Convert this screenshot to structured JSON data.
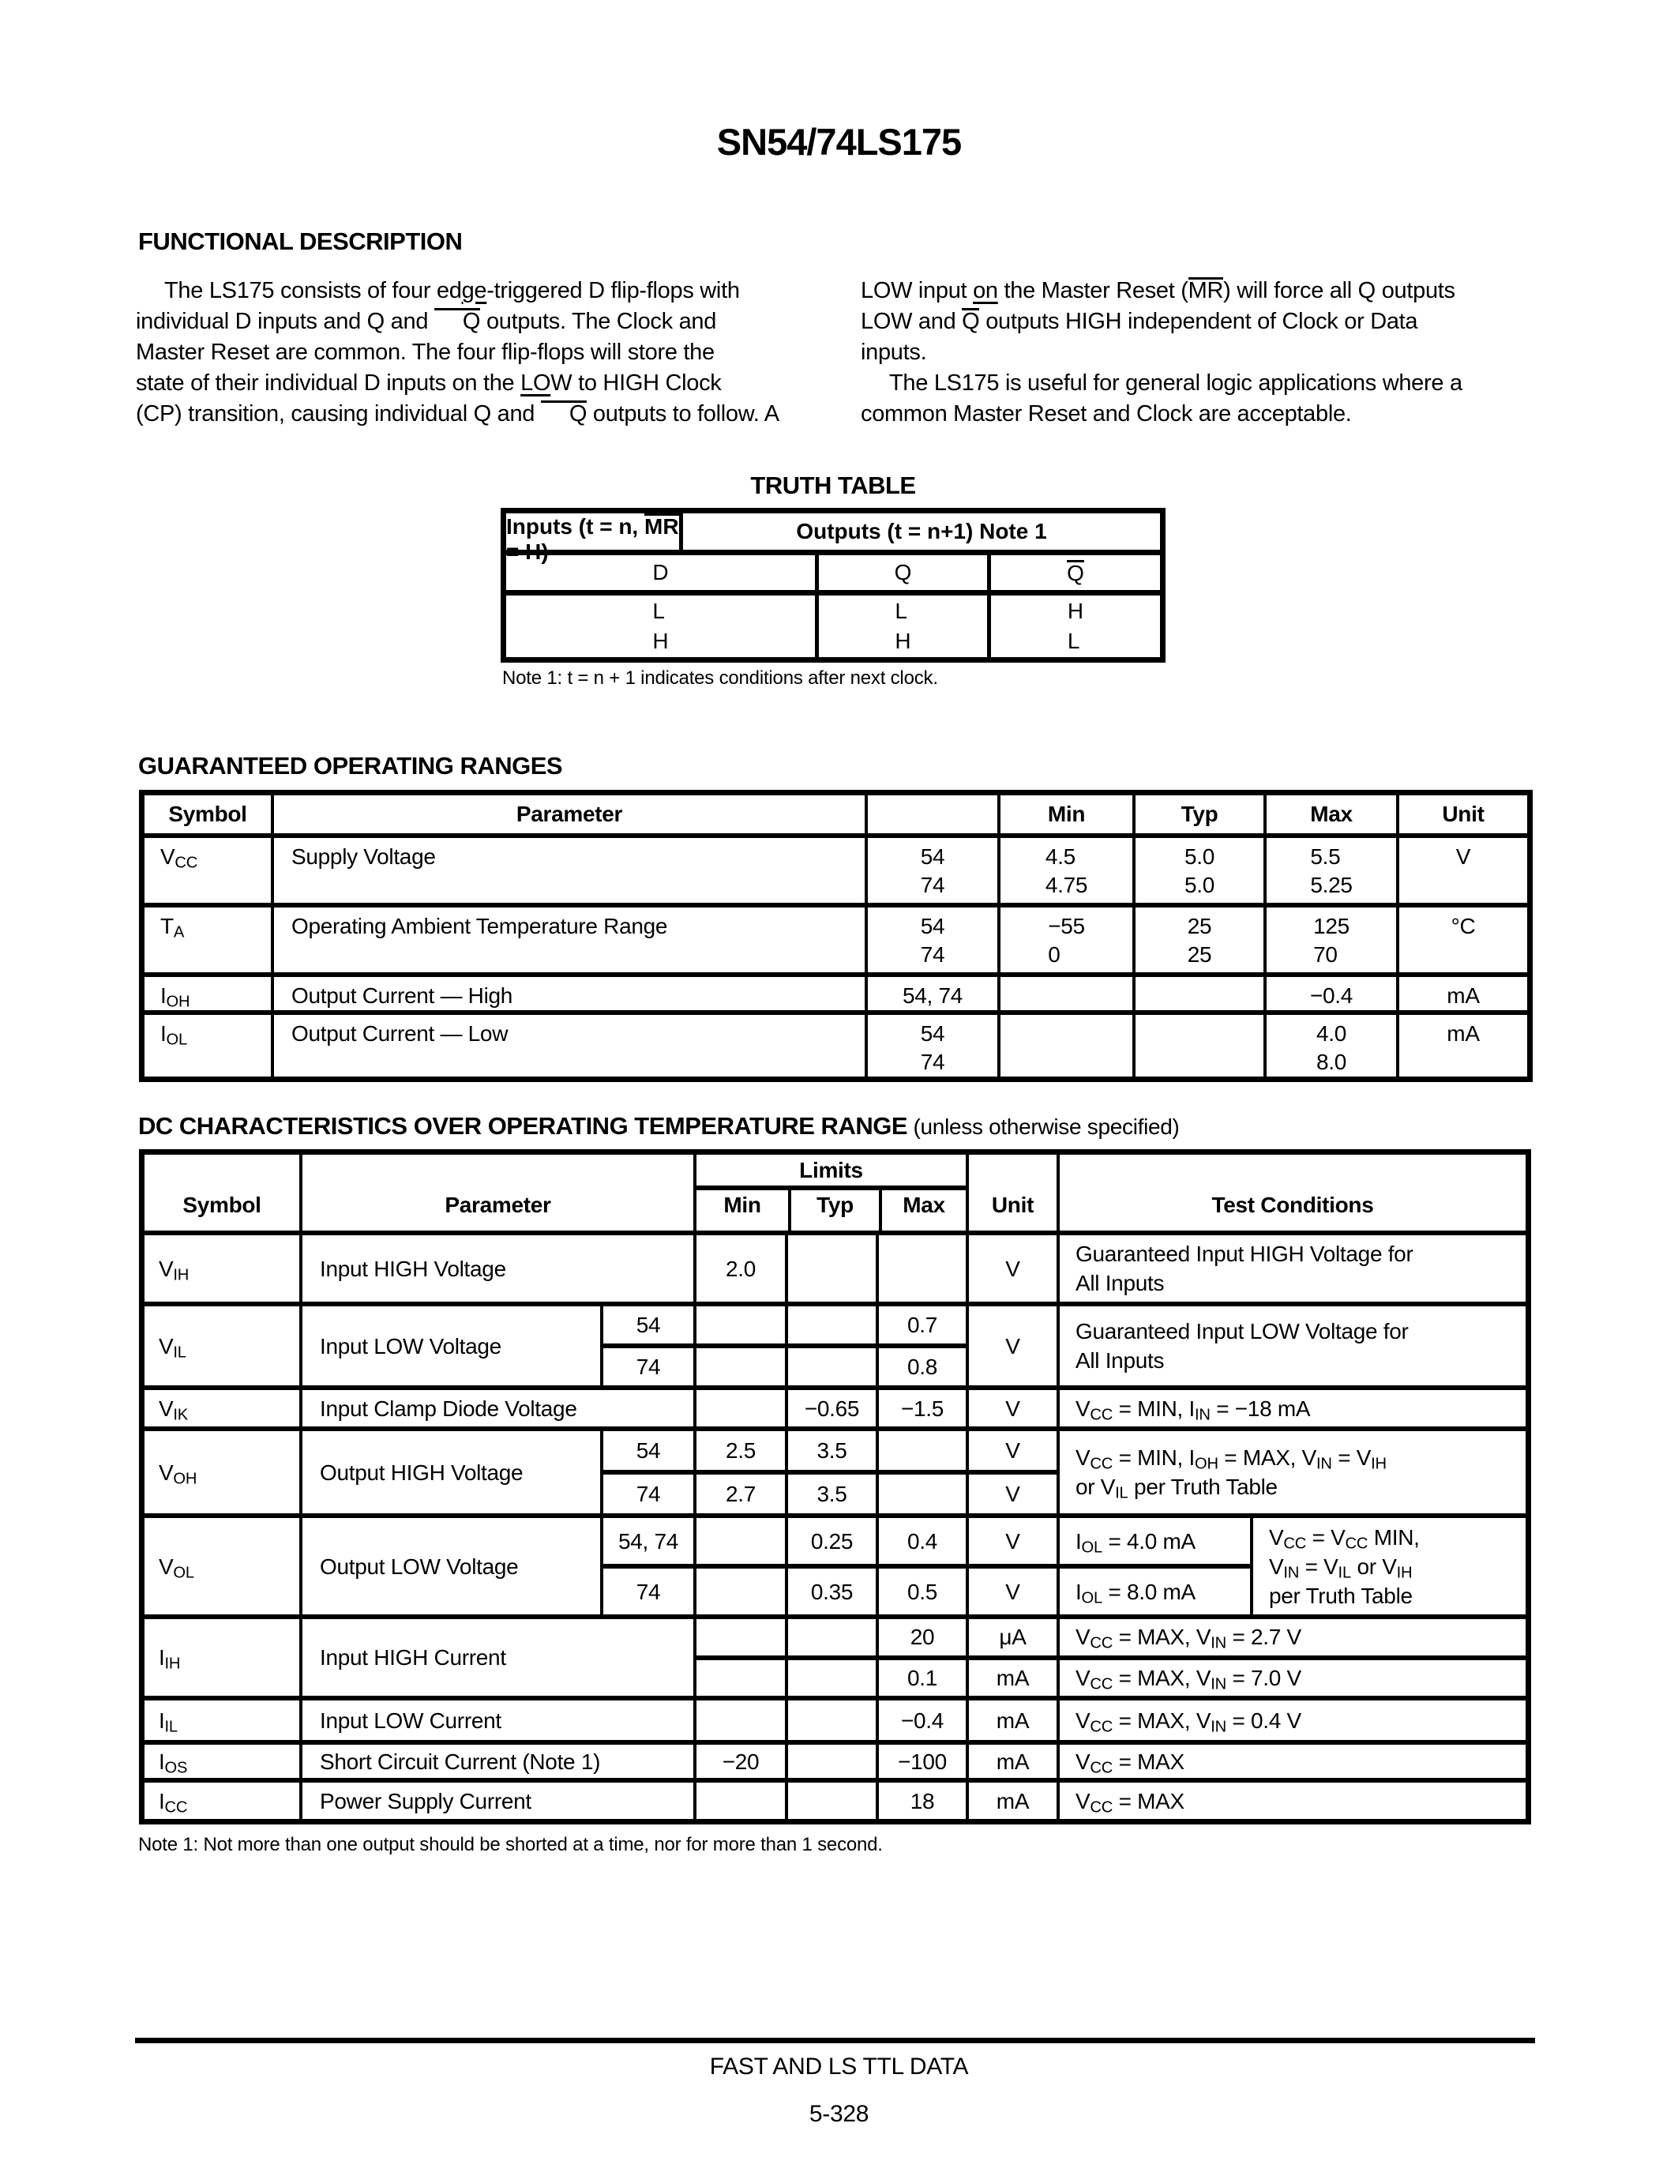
{
  "title": "SN54/74LS175",
  "functional": {
    "heading": "FUNCTIONAL DESCRIPTION",
    "left_p1": "The LS175 consists of four ed+ge+-triggered D flip-flops with\nindividual D inputs and Q and ~Q~ outputs. The Clock and\nMaster Reset are common. The four flip-flops will store the\nstate of their individual D inputs on the +LO+W to HIGH Clock\n(CP) transition, causing individual Q and ~Q~ outputs to follow. A",
    "right_p1": "LOW input +on+ the Master Reset (~MR~) will force all Q outputs\nLOW and ~Q~ outputs HIGH independent of Clock or Data\ninputs.",
    "right_p2": "The LS175 is useful for general logic applications where a\ncommon Master Reset and Clock are acceptable."
  },
  "truth_table": {
    "title": "TRUTH TABLE",
    "inputs_header": "Inputs (t = n, ~MR~ = H)",
    "outputs_header": "Outputs (t = n+1) Note 1",
    "col_d": "D",
    "col_q": "Q",
    "col_qbar": "~Q~",
    "d_values": "L\nH",
    "q_values": "L\nH",
    "qbar_values": "H\nL",
    "note": "Note 1: t = n + 1 indicates conditions after next clock."
  },
  "gor": {
    "heading": "GUARANTEED OPERATING RANGES",
    "header": {
      "symbol": "Symbol",
      "parameter": "Parameter",
      "device": "",
      "min": "Min",
      "typ": "Typ",
      "max": "Max",
      "unit": "Unit"
    },
    "rows": {
      "vcc": {
        "sym": "V_CC_",
        "param": "Supply Voltage",
        "dev": "54\n74",
        "min": "4.5\n4.75",
        "typ": "5.0\n5.0",
        "max": "5.5\n5.25",
        "unit": "V"
      },
      "ta": {
        "sym": "T_A_",
        "param": "Operating Ambient Temperature Range",
        "dev": "54\n74",
        "min": "−55\n0",
        "typ": "25\n25",
        "max": "125\n70",
        "unit": "°C"
      },
      "ioh": {
        "sym": "I_OH_",
        "param": "Output Current — High",
        "dev": "54, 74",
        "min": "",
        "typ": "",
        "max": "−0.4",
        "unit": "mA"
      },
      "iol": {
        "sym": "I_OL_",
        "param": "Output Current — Low",
        "dev": "54\n74",
        "min": "",
        "typ": "",
        "max": "4.0\n8.0",
        "unit": "mA"
      }
    }
  },
  "dc": {
    "heading": "DC CHARACTERISTICS OVER OPERATING TEMPERATURE RANGE",
    "heading_note": " (unless otherwise specified)",
    "header": {
      "symbol": "Symbol",
      "parameter": "Parameter",
      "limits": "Limits",
      "min": "Min",
      "typ": "Typ",
      "max": "Max",
      "unit": "Unit",
      "test_conditions": "Test Conditions"
    },
    "rows": {
      "vih": {
        "sym": "V_IH_",
        "param": "Input HIGH Voltage",
        "min": "2.0",
        "unit": "V",
        "tc": "Guaranteed Input HIGH Voltage for\nAll Inputs"
      },
      "vil": {
        "sym": "V_IL_",
        "param": "Input LOW Voltage",
        "dev1": "54",
        "max1": "0.7",
        "dev2": "74",
        "max2": "0.8",
        "unit": "V",
        "tc": "Guaranteed Input LOW Voltage for\nAll Inputs"
      },
      "vik": {
        "sym": "V_IK_",
        "param": "Input Clamp Diode Voltage",
        "typ": "−0.65",
        "max": "−1.5",
        "unit": "V",
        "tc": "V_CC_ = MIN, I_IN_ = −18 mA"
      },
      "voh": {
        "sym": "V_OH_",
        "param": "Output HIGH Voltage",
        "dev1": "54",
        "min1": "2.5",
        "typ1": "3.5",
        "unit1": "V",
        "dev2": "74",
        "min2": "2.7",
        "typ2": "3.5",
        "unit2": "V",
        "tc": "V_CC_ = MIN, I_OH_ = MAX, V_IN_ = V_IH_\nor V_IL_ per Truth Table"
      },
      "vol": {
        "sym": "V_OL_",
        "param": "Output LOW Voltage",
        "dev1": "54, 74",
        "typ1": "0.25",
        "max1": "0.4",
        "unit1": "V",
        "tc1": "I_OL_ = 4.0 mA",
        "dev2": "74",
        "typ2": "0.35",
        "max2": "0.5",
        "unit2": "V",
        "tc2": "I_OL_ = 8.0 mA",
        "tc_shared": "V_CC_ = V_CC_ MIN,\nV_IN_ = V_IL_ or V_IH_\nper Truth Table"
      },
      "iih": {
        "sym": "I_IH_",
        "param": "Input HIGH Current",
        "max1": "20",
        "unit1": "μA",
        "tc1": "V_CC_ = MAX, V_IN_ = 2.7 V",
        "max2": "0.1",
        "unit2": "mA",
        "tc2": "V_CC_ = MAX, V_IN_ = 7.0 V"
      },
      "iil": {
        "sym": "I_IL_",
        "param": "Input LOW Current",
        "max": "−0.4",
        "unit": "mA",
        "tc": "V_CC_ = MAX, V_IN_ = 0.4 V"
      },
      "ios": {
        "sym": "I_OS_",
        "param": "Short Circuit Current (Note 1)",
        "min": "−20",
        "max": "−100",
        "unit": "mA",
        "tc": "V_CC_ = MAX"
      },
      "icc": {
        "sym": "I_CC_",
        "param": "Power Supply Current",
        "max": "18",
        "unit": "mA",
        "tc": "V_CC_ = MAX"
      }
    },
    "note": "Note 1: Not more than one output should be shorted at a time, nor for more than 1 second."
  },
  "footer": {
    "line1": "FAST AND LS TTL DATA",
    "page": "5-328"
  }
}
